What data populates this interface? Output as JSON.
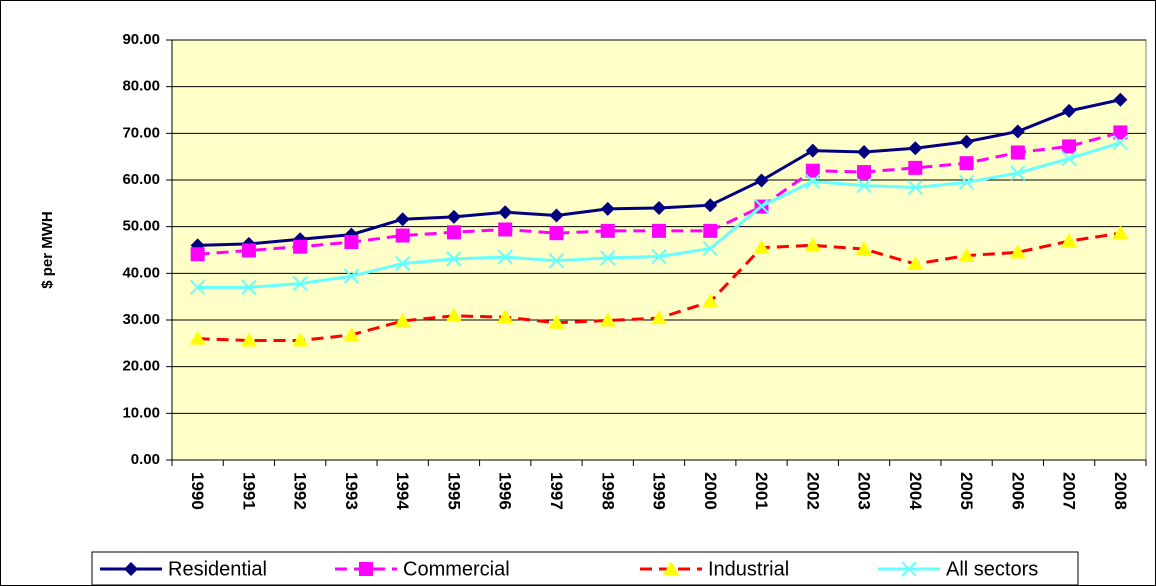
{
  "chart_data": {
    "type": "line",
    "y_label": "$ per MWH",
    "categories": [
      "1990",
      "1991",
      "1992",
      "1993",
      "1994",
      "1995",
      "1996",
      "1997",
      "1998",
      "1999",
      "2000",
      "2001",
      "2002",
      "2003",
      "2004",
      "2005",
      "2006",
      "2007",
      "2008"
    ],
    "series": [
      {
        "name": "Residential",
        "color": "#000080",
        "marker": "diamond",
        "dashed": false,
        "values": [
          46.0,
          46.3,
          47.3,
          48.3,
          51.6,
          52.1,
          53.1,
          52.4,
          53.8,
          54.0,
          54.6,
          59.9,
          66.3,
          66.0,
          66.8,
          68.2,
          70.4,
          74.8,
          77.2
        ]
      },
      {
        "name": "Commercial",
        "color": "#ff00ff",
        "marker": "square",
        "dashed": true,
        "values": [
          44.1,
          44.9,
          45.7,
          46.7,
          48.1,
          48.8,
          49.4,
          48.6,
          49.1,
          49.1,
          49.1,
          54.3,
          62.0,
          61.7,
          62.6,
          63.6,
          65.9,
          67.2,
          70.2
        ]
      },
      {
        "name": "Industrial",
        "color": "#ff0000",
        "marker_color": "#ffff00",
        "marker": "triangle",
        "dashed": true,
        "values": [
          26.0,
          25.6,
          25.6,
          26.8,
          29.8,
          30.9,
          30.6,
          29.4,
          29.9,
          30.4,
          33.9,
          45.5,
          46.0,
          45.2,
          42.0,
          43.8,
          44.5,
          46.9,
          48.6
        ]
      },
      {
        "name": "All sectors",
        "color": "#66ffff",
        "marker": "x",
        "dashed": false,
        "values": [
          37.0,
          37.0,
          37.8,
          39.4,
          42.1,
          43.1,
          43.5,
          42.7,
          43.3,
          43.6,
          45.3,
          54.4,
          59.7,
          58.8,
          58.4,
          59.5,
          61.5,
          64.6,
          68.0
        ]
      }
    ],
    "ylim": [
      0,
      90
    ],
    "yticks": [
      {
        "value": 0,
        "label": "0.00"
      },
      {
        "value": 10,
        "label": "10.00"
      },
      {
        "value": 20,
        "label": "20.00"
      },
      {
        "value": 30,
        "label": "30.00"
      },
      {
        "value": 40,
        "label": "40.00"
      },
      {
        "value": 50,
        "label": "50.00"
      },
      {
        "value": 60,
        "label": "60.00"
      },
      {
        "value": 70,
        "label": "70.00"
      },
      {
        "value": 80,
        "label": "80.00"
      },
      {
        "value": 90,
        "label": "90.00"
      }
    ],
    "grid": true,
    "plot_background": "#ffffc8",
    "legend": "bottom"
  }
}
